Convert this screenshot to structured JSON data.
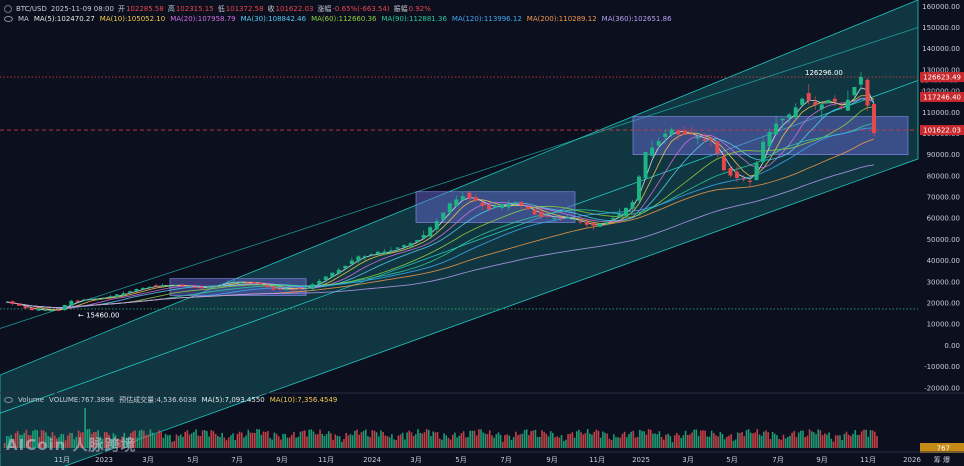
{
  "header": {
    "symbol": "BTC/USD",
    "datetime": "2025-11-09 08:00",
    "open_label": "开",
    "open": "102285.58",
    "high_label": "高",
    "high": "102315.15",
    "low_label": "低",
    "low": "101372.58",
    "close_label": "收",
    "close": "101622.03",
    "change_label": "涨幅",
    "change": "-0.65%(-663.54)",
    "amplitude_label": "振幅",
    "amplitude": "0.92%"
  },
  "ma_row": {
    "prefix": "MA",
    "ma5": "MA(5):102470.27",
    "ma10": "MA(10):105052.10",
    "ma20": "MA(20):107958.79",
    "ma30": "MA(30):108842.46",
    "ma60": "MA(60):112660.36",
    "ma90": "MA(90):112881.36",
    "ma120": "MA(120):113996.12",
    "ma200": "MA(200):110289.12",
    "ma360": "MA(360):102651.86"
  },
  "volume_row": {
    "label": "Volume",
    "volume": "VOLUME:767.3896",
    "forecast": "预估成交量:4,536.6038",
    "ma5": "MA(5):7,093.4550",
    "ma10": "MA(10):7,356.4549"
  },
  "watermark": "AICoin 人脉跨境",
  "corner": {
    "a": "筹",
    "b": "爆"
  },
  "colors": {
    "background": "#0c0f1e",
    "channel": "#22c6c0",
    "box": "#6f6fe0",
    "up": "#1db584",
    "down": "#e5484d",
    "ma5": "#e8e8e8",
    "ma10": "#f2c94c",
    "ma20": "#d16fe0",
    "ma30": "#56ccf2",
    "ma60": "#8fd13f",
    "ma90": "#2ecc9a",
    "ma120": "#3fa9f5",
    "ma200": "#f2994a",
    "ma360": "#b79ff0"
  },
  "chart_data": {
    "type": "candlestick",
    "x_ticks": [
      "11月",
      "2023",
      "3月",
      "5月",
      "7月",
      "9月",
      "11月",
      "2024",
      "3月",
      "5月",
      "7月",
      "9月",
      "11月",
      "2025",
      "3月",
      "5月",
      "7月",
      "9月",
      "11月",
      "2026"
    ],
    "y_ticks": [
      160000,
      150000,
      140000,
      130000,
      120000,
      110000,
      100000,
      90000,
      80000,
      70000,
      60000,
      50000,
      40000,
      30000,
      20000,
      10000,
      0,
      -10000,
      -20000
    ],
    "y_tick_labels": [
      "160000.00",
      "150000.00",
      "140000.00",
      "130000.00",
      "120000.00",
      "110000.00",
      "100000.00",
      "90000.00",
      "80000.00",
      "70000.00",
      "60000.00",
      "50000.00",
      "40000.00",
      "30000.00",
      "20000.00",
      "10000.00",
      "0.00",
      "-10000.00",
      "-20000.00"
    ],
    "ylim": [
      -22000,
      163000
    ],
    "price_path": [
      [
        0,
        20500
      ],
      [
        4,
        16800
      ],
      [
        8,
        16600
      ],
      [
        10,
        21000
      ],
      [
        16,
        23000
      ],
      [
        22,
        28000
      ],
      [
        26,
        28500
      ],
      [
        30,
        27000
      ],
      [
        34,
        30000
      ],
      [
        38,
        29500
      ],
      [
        41,
        26500
      ],
      [
        46,
        27000
      ],
      [
        50,
        34000
      ],
      [
        54,
        42000
      ],
      [
        58,
        44000
      ],
      [
        61,
        47000
      ],
      [
        64,
        52000
      ],
      [
        68,
        66000
      ],
      [
        70,
        71000
      ],
      [
        74,
        65000
      ],
      [
        78,
        67000
      ],
      [
        82,
        61000
      ],
      [
        86,
        60000
      ],
      [
        90,
        56000
      ],
      [
        94,
        62000
      ],
      [
        96,
        68000
      ],
      [
        98,
        90000
      ],
      [
        100,
        97000
      ],
      [
        102,
        102000
      ],
      [
        104,
        100000
      ],
      [
        108,
        96000
      ],
      [
        110,
        83000
      ],
      [
        112,
        79000
      ],
      [
        114,
        78000
      ],
      [
        116,
        95000
      ],
      [
        118,
        105000
      ],
      [
        120,
        108000
      ],
      [
        122,
        118000
      ],
      [
        124,
        113000
      ],
      [
        126,
        116000
      ],
      [
        128,
        111000
      ],
      [
        130,
        122000
      ],
      [
        131,
        126000
      ],
      [
        132,
        114000
      ],
      [
        133,
        101622
      ]
    ],
    "last_price_label": "101622.03",
    "high_marker_label": "126296.00",
    "low_marker_label": "15460.00",
    "price_tags": [
      {
        "label": "126623.49",
        "value": 126623.49,
        "color": "#c8292e"
      },
      {
        "label": "117246.40",
        "value": 117246.4,
        "color": "#c8292e"
      },
      {
        "label": "101622.03",
        "value": 101622.03,
        "color": "#c8292e"
      }
    ],
    "faint_tags": [
      {
        "label": "119581.47",
        "value": 119581.47
      },
      {
        "label": "124957.68",
        "value": 124957.68
      }
    ],
    "h_lines": [
      {
        "value": 126623.49,
        "style": "dotted-red"
      },
      {
        "value": 101622.03,
        "style": "dashed-red"
      },
      {
        "value": 17200,
        "style": "dotted-green"
      }
    ],
    "volume_label": "767"
  }
}
